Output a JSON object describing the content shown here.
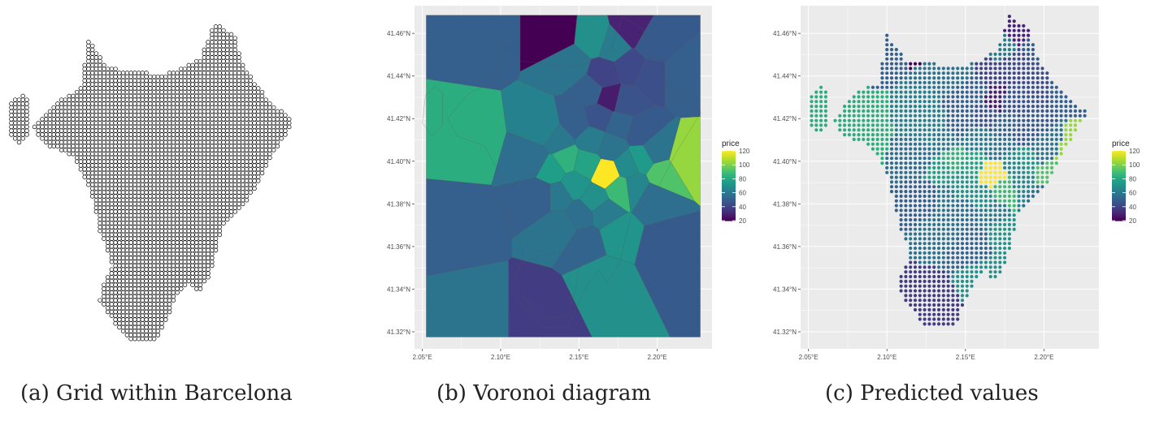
{
  "captions": {
    "a": "(a) Grid within Barcelona",
    "b": "(b) Voronoi diagram",
    "c": "(c) Predicted values"
  },
  "colors": {
    "panel_bg": "#ebebeb",
    "grid": "#ffffff",
    "viridis": [
      "#440154",
      "#482777",
      "#3e4a89",
      "#31688e",
      "#26828e",
      "#1f9e89",
      "#35b779",
      "#6ece58",
      "#b5de2b",
      "#fde725"
    ]
  },
  "chart_data": [
    {
      "type": "scatter",
      "title": "",
      "description_caption": "(a) Grid within Barcelona",
      "axes": "none",
      "marker": "open-circle",
      "lon_range": [
        2.052,
        2.228
      ],
      "lat_range": [
        41.317,
        41.468
      ]
    },
    {
      "type": "heatmap",
      "subtype": "voronoi",
      "xlabel": "",
      "ylabel": "",
      "xlim": [
        2.045,
        2.235
      ],
      "ylim": [
        41.312,
        41.473
      ],
      "x_ticks": [
        2.05,
        2.1,
        2.15,
        2.2
      ],
      "x_tick_labels": [
        "2.05°E",
        "2.10°E",
        "2.15°E",
        "2.20°E"
      ],
      "y_ticks": [
        41.32,
        41.34,
        41.36,
        41.38,
        41.4,
        41.42,
        41.44,
        41.46
      ],
      "y_tick_labels": [
        "41.32°N",
        "41.34°N",
        "41.36°N",
        "41.38°N",
        "41.40°N",
        "41.42°N",
        "41.44°N",
        "41.46°N"
      ],
      "legend": {
        "title": "price",
        "range": [
          20,
          120
        ],
        "ticks": [
          20,
          40,
          60,
          80,
          100,
          120
        ],
        "position": "right"
      },
      "grid": true,
      "sites": [
        {
          "x": 2.168,
          "y": 41.394,
          "v": 122
        },
        {
          "x": 2.154,
          "y": 41.399,
          "v": 78
        },
        {
          "x": 2.176,
          "y": 41.387,
          "v": 88
        },
        {
          "x": 2.16,
          "y": 41.382,
          "v": 70
        },
        {
          "x": 2.147,
          "y": 41.389,
          "v": 72
        },
        {
          "x": 2.142,
          "y": 41.401,
          "v": 84
        },
        {
          "x": 2.158,
          "y": 41.41,
          "v": 62
        },
        {
          "x": 2.171,
          "y": 41.407,
          "v": 58
        },
        {
          "x": 2.181,
          "y": 41.398,
          "v": 68
        },
        {
          "x": 2.19,
          "y": 41.401,
          "v": 74
        },
        {
          "x": 2.186,
          "y": 41.388,
          "v": 66
        },
        {
          "x": 2.166,
          "y": 41.376,
          "v": 62
        },
        {
          "x": 2.151,
          "y": 41.375,
          "v": 56
        },
        {
          "x": 2.137,
          "y": 41.384,
          "v": 60
        },
        {
          "x": 2.133,
          "y": 41.396,
          "v": 76
        },
        {
          "x": 2.137,
          "y": 41.41,
          "v": 60
        },
        {
          "x": 2.148,
          "y": 41.418,
          "v": 50
        },
        {
          "x": 2.163,
          "y": 41.421,
          "v": 46
        },
        {
          "x": 2.176,
          "y": 41.417,
          "v": 52
        },
        {
          "x": 2.189,
          "y": 41.414,
          "v": 48
        },
        {
          "x": 2.199,
          "y": 41.405,
          "v": 58
        },
        {
          "x": 2.203,
          "y": 41.394,
          "v": 92
        },
        {
          "x": 2.218,
          "y": 41.401,
          "v": 104
        },
        {
          "x": 2.197,
          "y": 41.383,
          "v": 56
        },
        {
          "x": 2.174,
          "y": 41.366,
          "v": 72
        },
        {
          "x": 2.155,
          "y": 41.362,
          "v": 52
        },
        {
          "x": 2.139,
          "y": 41.37,
          "v": 58
        },
        {
          "x": 2.126,
          "y": 41.384,
          "v": 50
        },
        {
          "x": 2.121,
          "y": 41.401,
          "v": 56
        },
        {
          "x": 2.128,
          "y": 41.415,
          "v": 64
        },
        {
          "x": 2.169,
          "y": 41.43,
          "v": 28
        },
        {
          "x": 2.18,
          "y": 41.428,
          "v": 46
        },
        {
          "x": 2.158,
          "y": 41.433,
          "v": 50
        },
        {
          "x": 2.166,
          "y": 41.44,
          "v": 40
        },
        {
          "x": 2.183,
          "y": 41.444,
          "v": 42
        },
        {
          "x": 2.172,
          "y": 41.455,
          "v": 62
        },
        {
          "x": 2.16,
          "y": 41.458,
          "v": 70
        },
        {
          "x": 2.182,
          "y": 41.462,
          "v": 30
        },
        {
          "x": 2.145,
          "y": 41.445,
          "v": 58
        },
        {
          "x": 2.135,
          "y": 41.46,
          "v": 20
        },
        {
          "x": 2.08,
          "y": 41.41,
          "v": 82
        },
        {
          "x": 2.09,
          "y": 41.46,
          "v": 50
        },
        {
          "x": 2.075,
          "y": 41.37,
          "v": 50
        },
        {
          "x": 2.085,
          "y": 41.33,
          "v": 58
        },
        {
          "x": 2.125,
          "y": 41.33,
          "v": 38
        },
        {
          "x": 2.165,
          "y": 41.345,
          "v": 70
        },
        {
          "x": 2.205,
          "y": 41.36,
          "v": 48
        },
        {
          "x": 2.215,
          "y": 41.44,
          "v": 50
        },
        {
          "x": 2.195,
          "y": 41.44,
          "v": 44
        },
        {
          "x": 2.198,
          "y": 41.455,
          "v": 48
        }
      ]
    },
    {
      "type": "scatter",
      "subtype": "predicted-grid",
      "xlabel": "",
      "ylabel": "",
      "xlim": [
        2.045,
        2.235
      ],
      "ylim": [
        41.312,
        41.473
      ],
      "x_ticks": [
        2.05,
        2.1,
        2.15,
        2.2
      ],
      "x_tick_labels": [
        "2.05°E",
        "2.10°E",
        "2.15°E",
        "2.20°E"
      ],
      "y_ticks": [
        41.32,
        41.34,
        41.36,
        41.38,
        41.4,
        41.42,
        41.44,
        41.46
      ],
      "y_tick_labels": [
        "41.32°N",
        "41.34°N",
        "41.36°N",
        "41.38°N",
        "41.40°N",
        "41.42°N",
        "41.44°N",
        "41.46°N"
      ],
      "legend": {
        "title": "price",
        "range": [
          20,
          120
        ],
        "ticks": [
          20,
          40,
          60,
          80,
          100,
          120
        ],
        "position": "right"
      },
      "grid": true,
      "grid_step_deg": 0.003,
      "region": {
        "main": [
          [
            2.1,
            41.46
          ],
          [
            2.112,
            41.447
          ],
          [
            2.128,
            41.446
          ],
          [
            2.145,
            41.444
          ],
          [
            2.158,
            41.447
          ],
          [
            2.17,
            41.452
          ],
          [
            2.178,
            41.468
          ],
          [
            2.191,
            41.462
          ],
          [
            2.196,
            41.449
          ],
          [
            2.204,
            41.44
          ],
          [
            2.213,
            41.431
          ],
          [
            2.228,
            41.423
          ],
          [
            2.212,
            41.404
          ],
          [
            2.2,
            41.387
          ],
          [
            2.183,
            41.374
          ],
          [
            2.176,
            41.352
          ],
          [
            2.168,
            41.343
          ],
          [
            2.163,
            41.349
          ],
          [
            2.155,
            41.342
          ],
          [
            2.15,
            41.334
          ],
          [
            2.143,
            41.322
          ],
          [
            2.125,
            41.322
          ],
          [
            2.115,
            41.331
          ],
          [
            2.107,
            41.34
          ],
          [
            2.115,
            41.356
          ],
          [
            2.107,
            41.372
          ],
          [
            2.101,
            41.392
          ],
          [
            2.09,
            41.407
          ],
          [
            2.072,
            41.412
          ],
          [
            2.066,
            41.42
          ],
          [
            2.08,
            41.432
          ],
          [
            2.095,
            41.437
          ]
        ],
        "west": [
          [
            2.052,
            41.431
          ],
          [
            2.058,
            41.435
          ],
          [
            2.063,
            41.432
          ],
          [
            2.063,
            41.417
          ],
          [
            2.056,
            41.412
          ],
          [
            2.05,
            41.418
          ]
        ],
        "south": [
          [
            2.108,
            41.346
          ],
          [
            2.113,
            41.352
          ],
          [
            2.128,
            41.356
          ],
          [
            2.143,
            41.358
          ],
          [
            2.15,
            41.352
          ],
          [
            2.148,
            41.34
          ],
          [
            2.143,
            41.328
          ],
          [
            2.13,
            41.326
          ],
          [
            2.117,
            41.334
          ]
        ]
      }
    }
  ]
}
